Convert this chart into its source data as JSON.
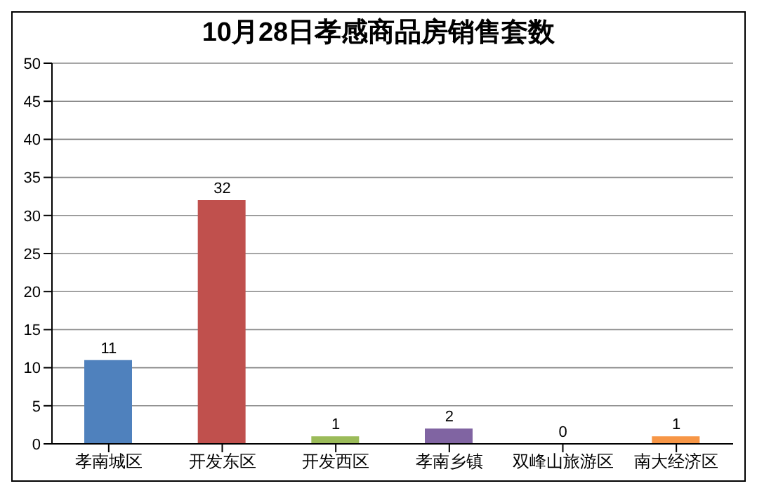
{
  "chart_data": {
    "type": "bar",
    "title": "10月28日孝感商品房销售套数",
    "categories": [
      "孝南城区",
      "开发东区",
      "开发西区",
      "孝南乡镇",
      "双峰山旅游区",
      "南大经济区"
    ],
    "values": [
      11,
      32,
      1,
      2,
      0,
      1
    ],
    "colors": [
      "#4f81bd",
      "#c0504d",
      "#9bbb59",
      "#8064a2",
      "#4bacc6",
      "#f79646"
    ],
    "ylim": [
      0,
      50
    ],
    "yticks": [
      0,
      5,
      10,
      15,
      20,
      25,
      30,
      35,
      40,
      45,
      50
    ],
    "grid": "y",
    "data_labels": true
  }
}
